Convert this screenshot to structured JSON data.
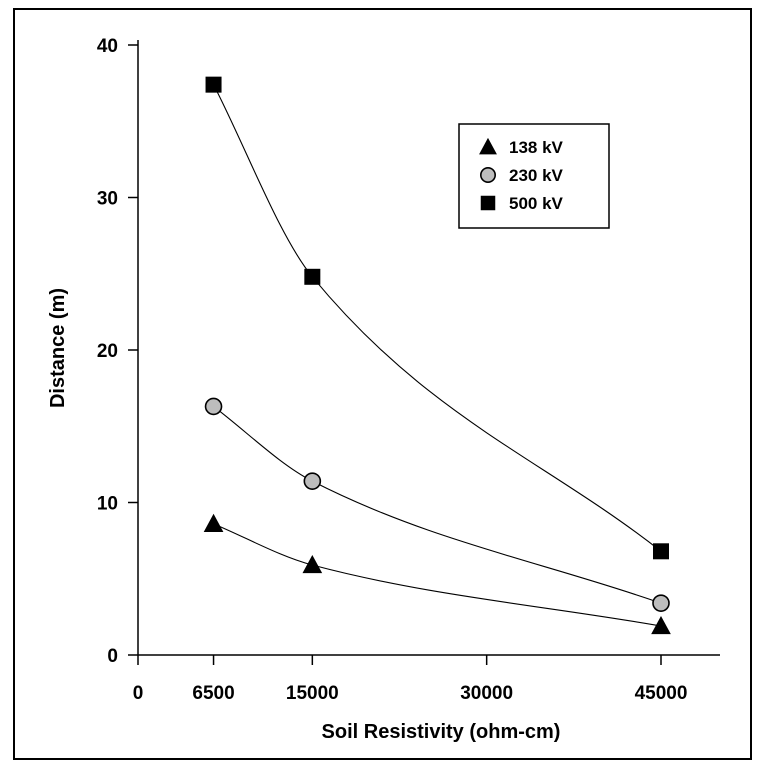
{
  "chart_data": {
    "type": "scatter",
    "title": "",
    "xlabel": "Soil Resistivity (ohm-cm)",
    "ylabel": "Distance (m)",
    "xlim": [
      0,
      50000
    ],
    "ylim": [
      0,
      40
    ],
    "x_ticks": [
      0,
      6500,
      15000,
      30000,
      45000
    ],
    "y_ticks": [
      0,
      10,
      20,
      30,
      40
    ],
    "grid": false,
    "legend_position": "top-right",
    "series": [
      {
        "name": "138 kV",
        "marker": "triangle",
        "color": "#000000",
        "x": [
          6500,
          15000,
          45000
        ],
        "y": [
          8.6,
          5.9,
          1.9
        ]
      },
      {
        "name": "230 kV",
        "marker": "circle",
        "color": "#bdbdbd",
        "x": [
          6500,
          15000,
          45000
        ],
        "y": [
          16.3,
          11.4,
          3.4
        ]
      },
      {
        "name": "500 kV",
        "marker": "square",
        "color": "#000000",
        "x": [
          6500,
          15000,
          45000
        ],
        "y": [
          37.4,
          24.8,
          6.8
        ]
      }
    ]
  }
}
